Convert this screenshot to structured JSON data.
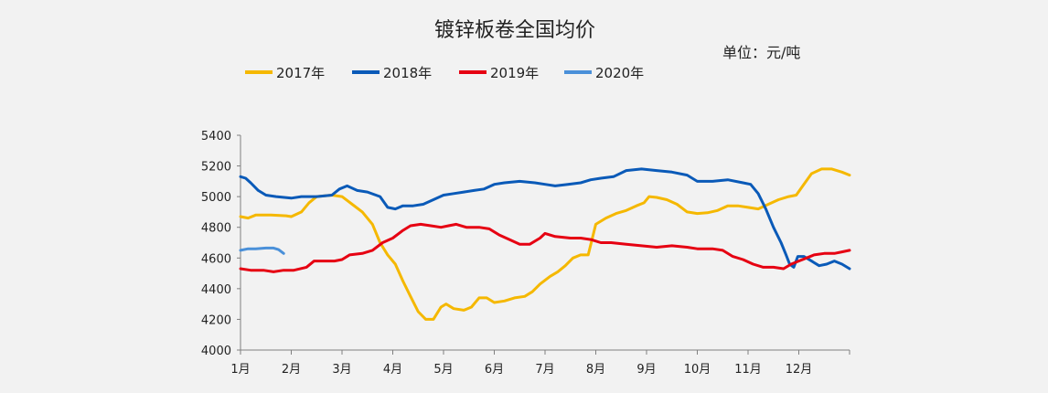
{
  "chart_data": {
    "type": "line",
    "title": "镀锌板卷全国均价",
    "unit_label": "单位：元/吨",
    "x_tick_labels": [
      "1月",
      "2月",
      "3月",
      "4月",
      "5月",
      "6月",
      "7月",
      "8月",
      "9月",
      "10月",
      "11月",
      "12月"
    ],
    "x_range": [
      1,
      13
    ],
    "ylim": [
      4000,
      5400
    ],
    "y_ticks": [
      4000,
      4200,
      4400,
      4600,
      4800,
      5000,
      5200,
      5400
    ],
    "grid": false,
    "legend_position": "top",
    "series": [
      {
        "name": "2017年",
        "color": "#f5b800",
        "points": [
          [
            1.0,
            4870
          ],
          [
            1.15,
            4860
          ],
          [
            1.3,
            4880
          ],
          [
            1.6,
            4880
          ],
          [
            1.9,
            4875
          ],
          [
            2.0,
            4870
          ],
          [
            2.2,
            4900
          ],
          [
            2.35,
            4960
          ],
          [
            2.5,
            5000
          ],
          [
            2.8,
            5010
          ],
          [
            3.0,
            5000
          ],
          [
            3.2,
            4950
          ],
          [
            3.4,
            4900
          ],
          [
            3.6,
            4820
          ],
          [
            3.75,
            4700
          ],
          [
            3.9,
            4620
          ],
          [
            4.05,
            4560
          ],
          [
            4.2,
            4450
          ],
          [
            4.35,
            4350
          ],
          [
            4.5,
            4250
          ],
          [
            4.65,
            4200
          ],
          [
            4.8,
            4200
          ],
          [
            4.95,
            4280
          ],
          [
            5.05,
            4300
          ],
          [
            5.2,
            4270
          ],
          [
            5.4,
            4260
          ],
          [
            5.55,
            4280
          ],
          [
            5.7,
            4340
          ],
          [
            5.85,
            4340
          ],
          [
            6.0,
            4310
          ],
          [
            6.2,
            4320
          ],
          [
            6.4,
            4340
          ],
          [
            6.6,
            4350
          ],
          [
            6.75,
            4380
          ],
          [
            6.9,
            4430
          ],
          [
            7.1,
            4480
          ],
          [
            7.25,
            4510
          ],
          [
            7.4,
            4550
          ],
          [
            7.55,
            4600
          ],
          [
            7.7,
            4620
          ],
          [
            7.85,
            4620
          ],
          [
            8.0,
            4820
          ],
          [
            8.2,
            4860
          ],
          [
            8.4,
            4890
          ],
          [
            8.6,
            4910
          ],
          [
            8.8,
            4940
          ],
          [
            8.95,
            4960
          ],
          [
            9.05,
            5000
          ],
          [
            9.2,
            4995
          ],
          [
            9.4,
            4980
          ],
          [
            9.6,
            4950
          ],
          [
            9.8,
            4900
          ],
          [
            10.0,
            4890
          ],
          [
            10.2,
            4895
          ],
          [
            10.4,
            4910
          ],
          [
            10.6,
            4940
          ],
          [
            10.8,
            4940
          ],
          [
            11.0,
            4930
          ],
          [
            11.2,
            4920
          ],
          [
            11.4,
            4950
          ],
          [
            11.6,
            4980
          ],
          [
            11.8,
            5000
          ],
          [
            11.95,
            5010
          ],
          [
            12.1,
            5080
          ],
          [
            12.25,
            5150
          ],
          [
            12.45,
            5180
          ],
          [
            12.65,
            5180
          ],
          [
            12.85,
            5160
          ],
          [
            13.0,
            5140
          ]
        ]
      },
      {
        "name": "2018年",
        "color": "#0a5ab8",
        "points": [
          [
            1.0,
            5130
          ],
          [
            1.1,
            5120
          ],
          [
            1.2,
            5090
          ],
          [
            1.35,
            5040
          ],
          [
            1.5,
            5010
          ],
          [
            1.7,
            5000
          ],
          [
            2.0,
            4990
          ],
          [
            2.2,
            5000
          ],
          [
            2.5,
            5000
          ],
          [
            2.8,
            5010
          ],
          [
            2.95,
            5050
          ],
          [
            3.1,
            5070
          ],
          [
            3.3,
            5040
          ],
          [
            3.5,
            5030
          ],
          [
            3.75,
            5000
          ],
          [
            3.9,
            4930
          ],
          [
            4.05,
            4920
          ],
          [
            4.2,
            4940
          ],
          [
            4.4,
            4940
          ],
          [
            4.6,
            4950
          ],
          [
            4.8,
            4980
          ],
          [
            5.0,
            5010
          ],
          [
            5.2,
            5020
          ],
          [
            5.4,
            5030
          ],
          [
            5.6,
            5040
          ],
          [
            5.8,
            5050
          ],
          [
            6.0,
            5080
          ],
          [
            6.2,
            5090
          ],
          [
            6.5,
            5100
          ],
          [
            6.8,
            5090
          ],
          [
            7.0,
            5080
          ],
          [
            7.2,
            5070
          ],
          [
            7.45,
            5080
          ],
          [
            7.7,
            5090
          ],
          [
            7.9,
            5110
          ],
          [
            8.1,
            5120
          ],
          [
            8.35,
            5130
          ],
          [
            8.6,
            5170
          ],
          [
            8.9,
            5180
          ],
          [
            9.2,
            5170
          ],
          [
            9.5,
            5160
          ],
          [
            9.8,
            5140
          ],
          [
            10.0,
            5100
          ],
          [
            10.3,
            5100
          ],
          [
            10.6,
            5110
          ],
          [
            10.9,
            5090
          ],
          [
            11.05,
            5080
          ],
          [
            11.2,
            5020
          ],
          [
            11.35,
            4920
          ],
          [
            11.5,
            4800
          ],
          [
            11.65,
            4700
          ],
          [
            11.75,
            4620
          ],
          [
            11.82,
            4560
          ],
          [
            11.9,
            4540
          ],
          [
            11.98,
            4610
          ],
          [
            12.1,
            4610
          ],
          [
            12.25,
            4580
          ],
          [
            12.4,
            4550
          ],
          [
            12.55,
            4560
          ],
          [
            12.7,
            4580
          ],
          [
            12.85,
            4560
          ],
          [
            13.0,
            4530
          ]
        ]
      },
      {
        "name": "2019年",
        "color": "#e60012",
        "points": [
          [
            1.0,
            4530
          ],
          [
            1.2,
            4520
          ],
          [
            1.45,
            4520
          ],
          [
            1.65,
            4510
          ],
          [
            1.85,
            4520
          ],
          [
            2.05,
            4520
          ],
          [
            2.3,
            4540
          ],
          [
            2.45,
            4580
          ],
          [
            2.65,
            4580
          ],
          [
            2.85,
            4580
          ],
          [
            3.0,
            4590
          ],
          [
            3.15,
            4620
          ],
          [
            3.4,
            4630
          ],
          [
            3.6,
            4650
          ],
          [
            3.8,
            4700
          ],
          [
            4.0,
            4730
          ],
          [
            4.2,
            4780
          ],
          [
            4.35,
            4810
          ],
          [
            4.55,
            4820
          ],
          [
            4.75,
            4810
          ],
          [
            4.95,
            4800
          ],
          [
            5.1,
            4810
          ],
          [
            5.25,
            4820
          ],
          [
            5.45,
            4800
          ],
          [
            5.7,
            4800
          ],
          [
            5.9,
            4790
          ],
          [
            6.1,
            4750
          ],
          [
            6.3,
            4720
          ],
          [
            6.5,
            4690
          ],
          [
            6.7,
            4690
          ],
          [
            6.9,
            4730
          ],
          [
            7.0,
            4760
          ],
          [
            7.2,
            4740
          ],
          [
            7.5,
            4730
          ],
          [
            7.7,
            4730
          ],
          [
            7.9,
            4720
          ],
          [
            8.1,
            4700
          ],
          [
            8.3,
            4700
          ],
          [
            8.6,
            4690
          ],
          [
            8.9,
            4680
          ],
          [
            9.2,
            4670
          ],
          [
            9.5,
            4680
          ],
          [
            9.8,
            4670
          ],
          [
            10.0,
            4660
          ],
          [
            10.3,
            4660
          ],
          [
            10.5,
            4650
          ],
          [
            10.7,
            4610
          ],
          [
            10.9,
            4590
          ],
          [
            11.1,
            4560
          ],
          [
            11.3,
            4540
          ],
          [
            11.5,
            4540
          ],
          [
            11.7,
            4530
          ],
          [
            11.85,
            4560
          ],
          [
            12.0,
            4580
          ],
          [
            12.15,
            4600
          ],
          [
            12.3,
            4620
          ],
          [
            12.5,
            4630
          ],
          [
            12.7,
            4630
          ],
          [
            12.85,
            4640
          ],
          [
            13.0,
            4650
          ]
        ]
      },
      {
        "name": "2020年",
        "color": "#4a90d9",
        "points": [
          [
            1.0,
            4650
          ],
          [
            1.15,
            4660
          ],
          [
            1.3,
            4660
          ],
          [
            1.5,
            4665
          ],
          [
            1.65,
            4665
          ],
          [
            1.75,
            4655
          ],
          [
            1.85,
            4630
          ]
        ]
      }
    ]
  }
}
